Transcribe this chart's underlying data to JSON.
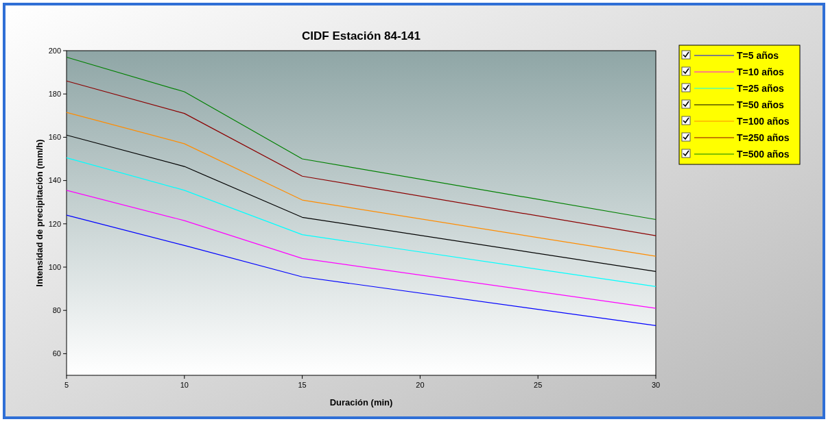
{
  "chart_data": {
    "type": "line",
    "title": "CIDF Estación 84-141",
    "xlabel": "Duración (min)",
    "ylabel": "Intensidad de precipitación (mm/h)",
    "x": [
      5,
      10,
      15,
      30
    ],
    "xlim": [
      5,
      30
    ],
    "xticks": [
      5,
      10,
      15,
      20,
      25,
      30
    ],
    "ylim": [
      50,
      200
    ],
    "yticks": [
      60,
      80,
      100,
      120,
      140,
      160,
      180,
      200
    ],
    "grid": false,
    "legend": "right",
    "marker": "none",
    "line_style": "solid",
    "series": [
      {
        "name": "T=5 años",
        "color": "#0000ff",
        "values": [
          124,
          110,
          95.5,
          73
        ]
      },
      {
        "name": "T=10 años",
        "color": "#ff00ff",
        "values": [
          135.5,
          121.5,
          104,
          81
        ]
      },
      {
        "name": "T=25 años",
        "color": "#00ffff",
        "values": [
          150.5,
          135.5,
          115,
          91
        ]
      },
      {
        "name": "T=50 años",
        "color": "#000000",
        "values": [
          161,
          146.5,
          123,
          98
        ]
      },
      {
        "name": "T=100 años",
        "color": "#ff8c00",
        "values": [
          171.5,
          157,
          131,
          105
        ]
      },
      {
        "name": "T=250 años",
        "color": "#8b0000",
        "values": [
          186,
          171,
          142,
          114.5
        ]
      },
      {
        "name": "T=500 años",
        "color": "#008000",
        "values": [
          197,
          181,
          150,
          122
        ]
      }
    ]
  }
}
